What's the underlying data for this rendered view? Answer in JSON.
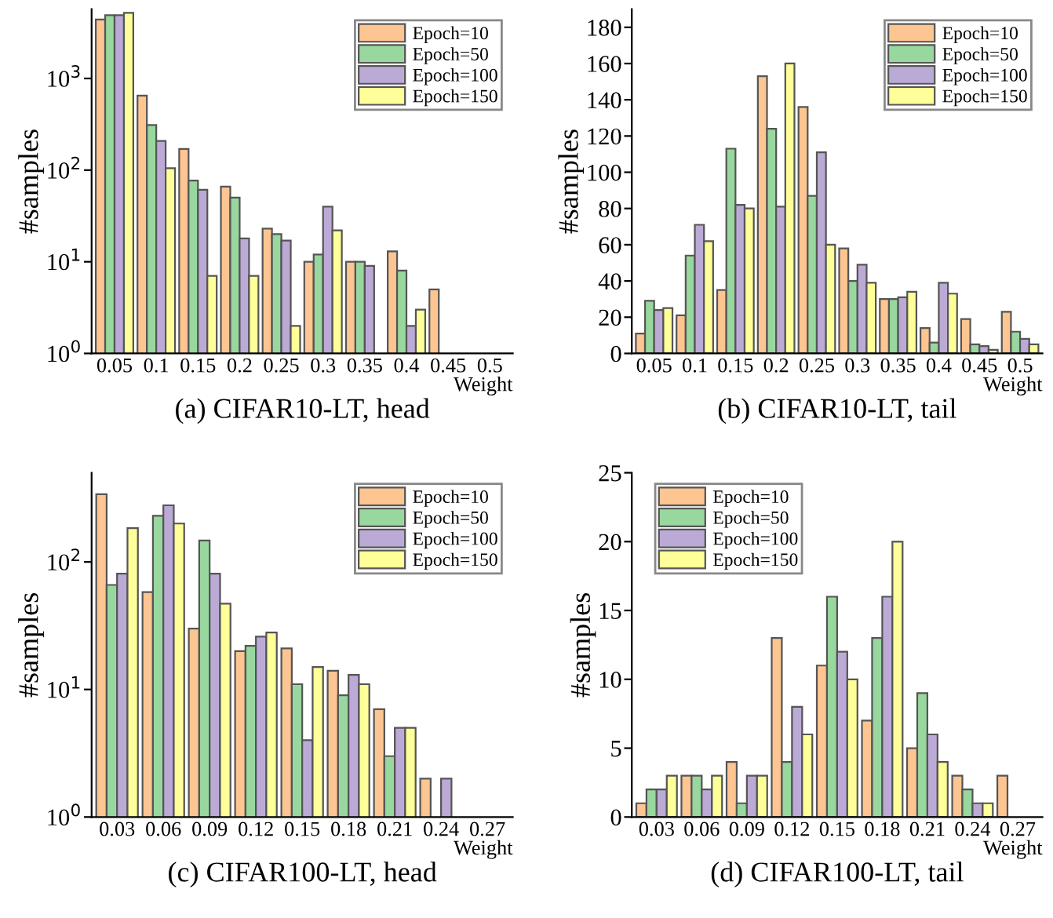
{
  "chart_data": [
    {
      "type": "bar",
      "title": "(a) CIFAR10-LT, head",
      "xlabel": "Weight",
      "ylabel": "#samples",
      "log": "y",
      "legend": "top right",
      "categories": [
        "0.05",
        "0.1",
        "0.15",
        "0.2",
        "0.25",
        "0.3",
        "0.35",
        "0.4",
        "0.45",
        "0.5"
      ],
      "ylim": [
        1,
        5700
      ],
      "yticks": [
        {
          "value": 1,
          "label": "10$^{0}$"
        },
        {
          "value": 10,
          "label": "10$^{1}$"
        },
        {
          "value": 100,
          "label": "10$^{2}$"
        },
        {
          "value": 1000,
          "label": "10$^{3}$"
        }
      ],
      "series": [
        {
          "name": "Epoch=10",
          "color": "#fdc591",
          "values": [
            4400,
            650,
            170,
            66,
            23,
            10,
            10,
            13,
            5,
            null
          ]
        },
        {
          "name": "Epoch=50",
          "color": "#98d89e",
          "values": [
            4900,
            310,
            77,
            50,
            20,
            12,
            10,
            8,
            null,
            null
          ]
        },
        {
          "name": "Epoch=100",
          "color": "#bcaad6",
          "values": [
            4900,
            208,
            61,
            18,
            17,
            40,
            9,
            2,
            null,
            null
          ]
        },
        {
          "name": "Epoch=150",
          "color": "#ffff99",
          "values": [
            5200,
            105,
            7,
            7,
            2,
            22,
            null,
            3,
            null,
            null
          ]
        }
      ]
    },
    {
      "type": "bar",
      "title": "(b) CIFAR10-LT, tail",
      "xlabel": "Weight",
      "ylabel": "#samples",
      "legend": "top right",
      "categories": [
        "0.05",
        "0.1",
        "0.15",
        "0.2",
        "0.25",
        "0.3",
        "0.35",
        "0.4",
        "0.45",
        "0.5"
      ],
      "ylim": [
        0,
        190
      ],
      "yticks": [
        0,
        20,
        40,
        60,
        80,
        100,
        120,
        140,
        160,
        180
      ],
      "series": [
        {
          "name": "Epoch=10",
          "color": "#fdc591",
          "values": [
            11,
            21,
            35,
            153,
            136,
            58,
            30,
            14,
            19,
            23
          ]
        },
        {
          "name": "Epoch=50",
          "color": "#98d89e",
          "values": [
            29,
            54,
            113,
            124,
            87,
            40,
            30,
            6,
            5,
            12
          ]
        },
        {
          "name": "Epoch=100",
          "color": "#bcaad6",
          "values": [
            24,
            71,
            82,
            81,
            111,
            49,
            31,
            39,
            4,
            8
          ]
        },
        {
          "name": "Epoch=150",
          "color": "#ffff99",
          "values": [
            25,
            62,
            80,
            160,
            60,
            39,
            34,
            33,
            2,
            5
          ]
        }
      ]
    },
    {
      "type": "bar",
      "title": "(c) CIFAR100-LT, head",
      "xlabel": "Weight",
      "ylabel": "#samples",
      "log": "y",
      "legend": "top right",
      "categories": [
        "0.03",
        "0.06",
        "0.09",
        "0.12",
        "0.15",
        "0.18",
        "0.21",
        "0.24",
        "0.27"
      ],
      "ylim": [
        1,
        500
      ],
      "yticks": [
        {
          "value": 1,
          "label": "10$^{0}$"
        },
        {
          "value": 10,
          "label": "10$^{1}$"
        },
        {
          "value": 100,
          "label": "10$^{2}$"
        }
      ],
      "series": [
        {
          "name": "Epoch=10",
          "color": "#fdc591",
          "values": [
            340,
            58,
            30,
            20,
            21,
            14,
            7,
            2,
            null
          ]
        },
        {
          "name": "Epoch=50",
          "color": "#98d89e",
          "values": [
            66,
            230,
            147,
            22,
            11,
            9,
            3,
            null,
            null
          ]
        },
        {
          "name": "Epoch=100",
          "color": "#bcaad6",
          "values": [
            81,
            278,
            81,
            26,
            4,
            13,
            5,
            2,
            null
          ]
        },
        {
          "name": "Epoch=150",
          "color": "#ffff99",
          "values": [
            184,
            200,
            47,
            28,
            15,
            11,
            5,
            null,
            null
          ]
        }
      ]
    },
    {
      "type": "bar",
      "title": "(d) CIFAR100-LT, tail",
      "xlabel": "Weight",
      "ylabel": "#samples",
      "legend": "top left",
      "categories": [
        "0.03",
        "0.06",
        "0.09",
        "0.12",
        "0.15",
        "0.18",
        "0.21",
        "0.24",
        "0.27"
      ],
      "ylim": [
        0,
        25
      ],
      "yticks": [
        0,
        5,
        10,
        15,
        20,
        25
      ],
      "series": [
        {
          "name": "Epoch=10",
          "color": "#fdc591",
          "values": [
            1,
            3,
            4,
            13,
            11,
            7,
            5,
            3,
            3
          ]
        },
        {
          "name": "Epoch=50",
          "color": "#98d89e",
          "values": [
            2,
            3,
            1,
            4,
            16,
            13,
            9,
            2,
            null
          ]
        },
        {
          "name": "Epoch=100",
          "color": "#bcaad6",
          "values": [
            2,
            2,
            3,
            8,
            12,
            16,
            6,
            1,
            null
          ]
        },
        {
          "name": "Epoch=150",
          "color": "#ffff99",
          "values": [
            3,
            3,
            3,
            6,
            10,
            20,
            4,
            1,
            null
          ]
        }
      ]
    }
  ]
}
